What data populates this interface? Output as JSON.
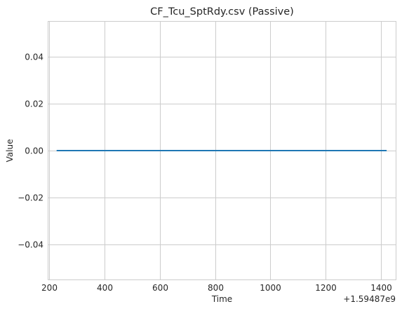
{
  "chart_data": {
    "type": "line",
    "title": "CF_Tcu_SptRdy.csv (Passive)",
    "xlabel": "Time",
    "ylabel": "Value",
    "x_offset_label": "+1.59487e9",
    "xlim": [
      196,
      1454
    ],
    "ylim": [
      -0.055,
      0.055
    ],
    "x_ticks": [
      200,
      400,
      600,
      800,
      1000,
      1200,
      1400
    ],
    "x_tick_labels": [
      "200",
      "400",
      "600",
      "800",
      "1000",
      "1200",
      "1400"
    ],
    "y_ticks": [
      0.04,
      0.02,
      0.0,
      -0.02,
      -0.04
    ],
    "y_tick_labels": [
      "0.04",
      "0.02",
      "0.00",
      "−0.02",
      "−0.04"
    ],
    "grid": true,
    "series": [
      {
        "color": "#1f77b4",
        "x": [
          227,
          1420
        ],
        "y": [
          0,
          0
        ]
      }
    ]
  }
}
